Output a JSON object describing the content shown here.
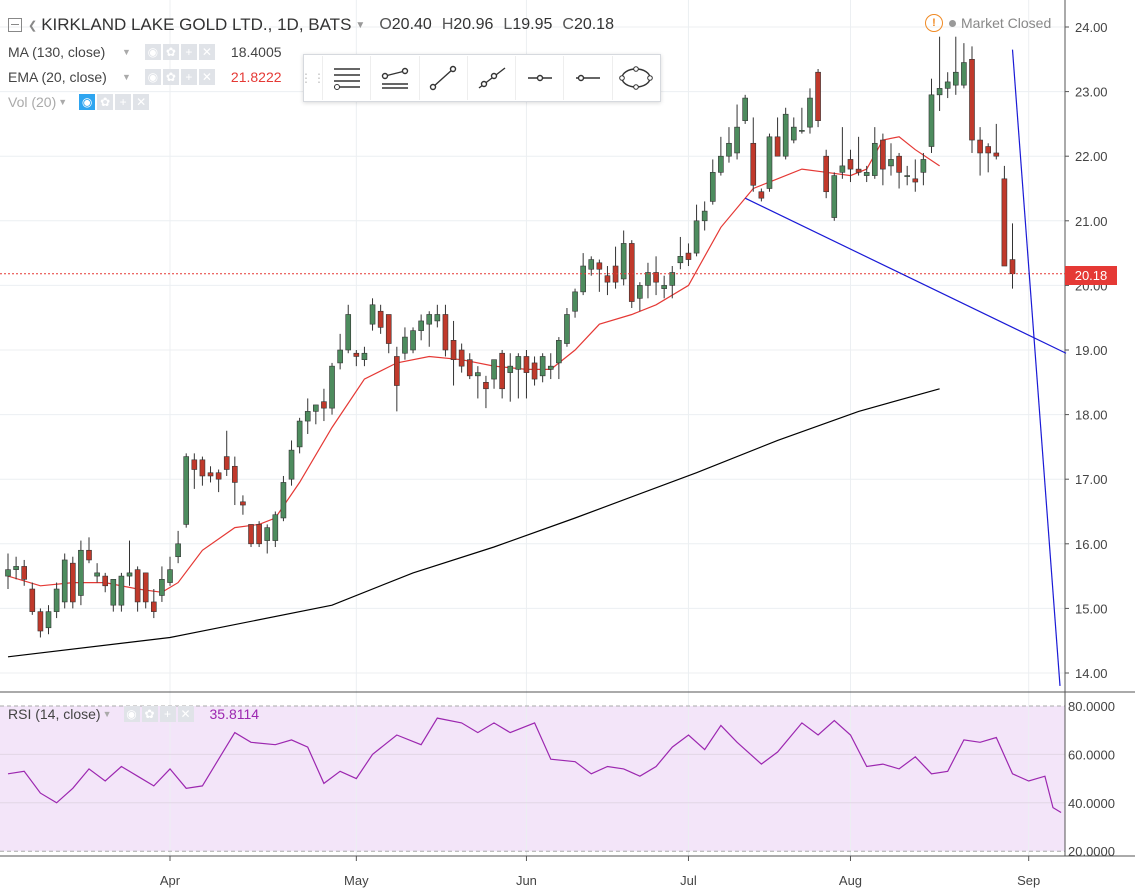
{
  "header": {
    "symbol": "KIRKLAND LAKE GOLD LTD., 1D, BATS",
    "open_label": "O",
    "open": "20.40",
    "high_label": "H",
    "high": "20.96",
    "low_label": "L",
    "low": "19.95",
    "close_label": "C",
    "close": "20.18"
  },
  "market_status": "Market Closed",
  "indicators": [
    {
      "label": "MA (130, close)",
      "value": "18.4005",
      "color": "#000000"
    },
    {
      "label": "EMA (20, close)",
      "value": "21.8222",
      "color": "#e53935"
    },
    {
      "label": "Vol (20)",
      "value": "",
      "color": "#aaaaaa"
    }
  ],
  "rsi": {
    "label": "RSI (14, close)",
    "value": "35.8114",
    "color": "#9c27b0"
  },
  "toolbar": {
    "tools": [
      "horizontal-lines-icon",
      "parallel-channel-icon",
      "trend-line-icon",
      "ray-icon",
      "horizontal-ray-icon",
      "horizontal-line-icon",
      "ellipse-icon"
    ]
  },
  "price_label": "20.18",
  "colors": {
    "up": "#4d8c5e",
    "down": "#c0392b",
    "ema": "#e53935",
    "ma": "#000000",
    "trendline": "#1a1ad6",
    "rsi": "#9c27b0",
    "rsi_bg": "#f3e5f9",
    "price_line": "#e53935"
  },
  "chart_data": {
    "type": "candlestick",
    "title": "KIRKLAND LAKE GOLD LTD., 1D, BATS",
    "yaxis": {
      "ticks": [
        "14.00",
        "15.00",
        "16.00",
        "17.00",
        "18.00",
        "19.00",
        "20.00",
        "21.00",
        "22.00",
        "23.00",
        "24.00"
      ],
      "range": [
        13.8,
        24.2
      ]
    },
    "xaxis": {
      "labels": [
        "Apr",
        "May",
        "Jun",
        "Jul",
        "Aug",
        "Sep"
      ],
      "label_days": [
        20,
        43,
        64,
        84,
        104,
        126
      ],
      "range": [
        0,
        129
      ]
    },
    "rsi_ticks": [
      "20.0000",
      "40.0000",
      "60.0000",
      "80.0000"
    ],
    "rsi_range": [
      18,
      82
    ],
    "candles": [
      {
        "o": 15.5,
        "h": 15.85,
        "l": 15.3,
        "c": 15.6
      },
      {
        "o": 15.6,
        "h": 15.8,
        "l": 15.45,
        "c": 15.65
      },
      {
        "o": 15.65,
        "h": 15.75,
        "l": 15.35,
        "c": 15.45
      },
      {
        "o": 15.3,
        "h": 15.4,
        "l": 14.9,
        "c": 14.95
      },
      {
        "o": 14.95,
        "h": 15.0,
        "l": 14.55,
        "c": 14.65
      },
      {
        "o": 14.7,
        "h": 15.05,
        "l": 14.6,
        "c": 14.95
      },
      {
        "o": 14.95,
        "h": 15.4,
        "l": 14.85,
        "c": 15.3
      },
      {
        "o": 15.1,
        "h": 15.85,
        "l": 15.0,
        "c": 15.75
      },
      {
        "o": 15.7,
        "h": 15.8,
        "l": 15.0,
        "c": 15.1
      },
      {
        "o": 15.2,
        "h": 16.05,
        "l": 15.05,
        "c": 15.9
      },
      {
        "o": 15.9,
        "h": 16.1,
        "l": 15.7,
        "c": 15.75
      },
      {
        "o": 15.5,
        "h": 15.7,
        "l": 15.4,
        "c": 15.55
      },
      {
        "o": 15.5,
        "h": 15.55,
        "l": 15.25,
        "c": 15.35
      },
      {
        "o": 15.05,
        "h": 15.45,
        "l": 14.95,
        "c": 15.45
      },
      {
        "o": 15.05,
        "h": 15.55,
        "l": 14.95,
        "c": 15.5
      },
      {
        "o": 15.5,
        "h": 16.05,
        "l": 15.35,
        "c": 15.55
      },
      {
        "o": 15.6,
        "h": 15.65,
        "l": 14.95,
        "c": 15.1
      },
      {
        "o": 15.55,
        "h": 15.55,
        "l": 15.0,
        "c": 15.1
      },
      {
        "o": 15.1,
        "h": 15.3,
        "l": 14.85,
        "c": 14.95
      },
      {
        "o": 15.2,
        "h": 15.65,
        "l": 15.1,
        "c": 15.45
      },
      {
        "o": 15.4,
        "h": 15.8,
        "l": 15.35,
        "c": 15.6
      },
      {
        "o": 15.8,
        "h": 16.2,
        "l": 15.7,
        "c": 16.0
      },
      {
        "o": 16.3,
        "h": 17.4,
        "l": 16.25,
        "c": 17.35
      },
      {
        "o": 17.3,
        "h": 17.4,
        "l": 16.85,
        "c": 17.15
      },
      {
        "o": 17.3,
        "h": 17.35,
        "l": 16.9,
        "c": 17.05
      },
      {
        "o": 17.1,
        "h": 17.2,
        "l": 16.95,
        "c": 17.05
      },
      {
        "o": 17.1,
        "h": 17.15,
        "l": 16.8,
        "c": 17.0
      },
      {
        "o": 17.35,
        "h": 17.75,
        "l": 17.05,
        "c": 17.15
      },
      {
        "o": 17.2,
        "h": 17.35,
        "l": 16.6,
        "c": 16.95
      },
      {
        "o": 16.65,
        "h": 16.75,
        "l": 16.45,
        "c": 16.6
      },
      {
        "o": 16.3,
        "h": 16.3,
        "l": 15.95,
        "c": 16.0
      },
      {
        "o": 16.3,
        "h": 16.35,
        "l": 15.95,
        "c": 16.0
      },
      {
        "o": 16.05,
        "h": 16.3,
        "l": 15.85,
        "c": 16.25
      },
      {
        "o": 16.05,
        "h": 16.5,
        "l": 15.95,
        "c": 16.45
      },
      {
        "o": 16.4,
        "h": 17.05,
        "l": 16.35,
        "c": 16.95
      },
      {
        "o": 17.0,
        "h": 17.6,
        "l": 16.9,
        "c": 17.45
      },
      {
        "o": 17.5,
        "h": 17.95,
        "l": 17.4,
        "c": 17.9
      },
      {
        "o": 17.9,
        "h": 18.25,
        "l": 17.7,
        "c": 18.05
      },
      {
        "o": 18.05,
        "h": 18.15,
        "l": 17.85,
        "c": 18.15
      },
      {
        "o": 18.2,
        "h": 18.4,
        "l": 17.9,
        "c": 18.1
      },
      {
        "o": 18.1,
        "h": 18.8,
        "l": 18.0,
        "c": 18.75
      },
      {
        "o": 18.8,
        "h": 19.25,
        "l": 18.7,
        "c": 19.0
      },
      {
        "o": 19.0,
        "h": 19.7,
        "l": 18.95,
        "c": 19.55
      },
      {
        "o": 18.95,
        "h": 19.0,
        "l": 18.75,
        "c": 18.9
      },
      {
        "o": 18.85,
        "h": 19.05,
        "l": 18.75,
        "c": 18.95
      },
      {
        "o": 19.4,
        "h": 19.8,
        "l": 19.3,
        "c": 19.7
      },
      {
        "o": 19.6,
        "h": 19.7,
        "l": 19.25,
        "c": 19.35
      },
      {
        "o": 19.55,
        "h": 19.55,
        "l": 18.95,
        "c": 19.1
      },
      {
        "o": 18.9,
        "h": 19.05,
        "l": 18.05,
        "c": 18.45
      },
      {
        "o": 18.95,
        "h": 19.35,
        "l": 18.85,
        "c": 19.2
      },
      {
        "o": 19.0,
        "h": 19.35,
        "l": 18.95,
        "c": 19.3
      },
      {
        "o": 19.3,
        "h": 19.55,
        "l": 19.15,
        "c": 19.45
      },
      {
        "o": 19.4,
        "h": 19.6,
        "l": 19.05,
        "c": 19.55
      },
      {
        "o": 19.45,
        "h": 19.7,
        "l": 19.35,
        "c": 19.55
      },
      {
        "o": 19.55,
        "h": 19.7,
        "l": 18.9,
        "c": 19.0
      },
      {
        "o": 19.15,
        "h": 19.45,
        "l": 18.45,
        "c": 18.85
      },
      {
        "o": 19.0,
        "h": 19.1,
        "l": 18.65,
        "c": 18.75
      },
      {
        "o": 18.85,
        "h": 18.95,
        "l": 18.55,
        "c": 18.6
      },
      {
        "o": 18.6,
        "h": 18.75,
        "l": 18.25,
        "c": 18.65
      },
      {
        "o": 18.5,
        "h": 18.6,
        "l": 18.1,
        "c": 18.4
      },
      {
        "o": 18.55,
        "h": 18.85,
        "l": 18.4,
        "c": 18.85
      },
      {
        "o": 18.95,
        "h": 19.0,
        "l": 18.25,
        "c": 18.4
      },
      {
        "o": 18.65,
        "h": 18.95,
        "l": 18.2,
        "c": 18.75
      },
      {
        "o": 18.7,
        "h": 18.95,
        "l": 18.25,
        "c": 18.9
      },
      {
        "o": 18.9,
        "h": 19.0,
        "l": 18.25,
        "c": 18.65
      },
      {
        "o": 18.8,
        "h": 18.9,
        "l": 18.45,
        "c": 18.55
      },
      {
        "o": 18.6,
        "h": 18.95,
        "l": 18.5,
        "c": 18.9
      },
      {
        "o": 18.7,
        "h": 18.95,
        "l": 18.55,
        "c": 18.75
      },
      {
        "o": 18.8,
        "h": 19.2,
        "l": 18.55,
        "c": 19.15
      },
      {
        "o": 19.1,
        "h": 19.65,
        "l": 19.05,
        "c": 19.55
      },
      {
        "o": 19.6,
        "h": 19.95,
        "l": 19.5,
        "c": 19.9
      },
      {
        "o": 19.9,
        "h": 20.5,
        "l": 19.85,
        "c": 20.3
      },
      {
        "o": 20.25,
        "h": 20.45,
        "l": 20.15,
        "c": 20.4
      },
      {
        "o": 20.35,
        "h": 20.4,
        "l": 19.9,
        "c": 20.25
      },
      {
        "o": 20.15,
        "h": 20.3,
        "l": 19.85,
        "c": 20.05
      },
      {
        "o": 20.3,
        "h": 20.6,
        "l": 19.95,
        "c": 20.05
      },
      {
        "o": 20.1,
        "h": 20.85,
        "l": 20.0,
        "c": 20.65
      },
      {
        "o": 20.65,
        "h": 20.7,
        "l": 19.65,
        "c": 19.75
      },
      {
        "o": 19.8,
        "h": 20.05,
        "l": 19.6,
        "c": 20.0
      },
      {
        "o": 20.0,
        "h": 20.35,
        "l": 19.8,
        "c": 20.2
      },
      {
        "o": 20.2,
        "h": 20.45,
        "l": 19.85,
        "c": 20.05
      },
      {
        "o": 19.95,
        "h": 20.15,
        "l": 19.8,
        "c": 20.0
      },
      {
        "o": 20.0,
        "h": 20.3,
        "l": 19.8,
        "c": 20.2
      },
      {
        "o": 20.35,
        "h": 20.75,
        "l": 20.25,
        "c": 20.45
      },
      {
        "o": 20.5,
        "h": 20.65,
        "l": 20.3,
        "c": 20.4
      },
      {
        "o": 20.5,
        "h": 21.25,
        "l": 20.45,
        "c": 21.0
      },
      {
        "o": 21.0,
        "h": 21.3,
        "l": 20.85,
        "c": 21.15
      },
      {
        "o": 21.3,
        "h": 21.95,
        "l": 21.25,
        "c": 21.75
      },
      {
        "o": 21.75,
        "h": 22.3,
        "l": 21.7,
        "c": 22.0
      },
      {
        "o": 22.0,
        "h": 22.45,
        "l": 21.9,
        "c": 22.2
      },
      {
        "o": 22.05,
        "h": 22.8,
        "l": 21.95,
        "c": 22.45
      },
      {
        "o": 22.55,
        "h": 22.95,
        "l": 22.5,
        "c": 22.9
      },
      {
        "o": 22.2,
        "h": 22.6,
        "l": 21.45,
        "c": 21.55
      },
      {
        "o": 21.45,
        "h": 21.5,
        "l": 21.3,
        "c": 21.35
      },
      {
        "o": 21.5,
        "h": 22.35,
        "l": 21.45,
        "c": 22.3
      },
      {
        "o": 22.3,
        "h": 22.6,
        "l": 22.0,
        "c": 22.0
      },
      {
        "o": 22.0,
        "h": 22.75,
        "l": 21.95,
        "c": 22.65
      },
      {
        "o": 22.25,
        "h": 22.6,
        "l": 22.2,
        "c": 22.45
      },
      {
        "o": 22.4,
        "h": 22.75,
        "l": 22.35,
        "c": 22.4
      },
      {
        "o": 22.45,
        "h": 23.05,
        "l": 22.35,
        "c": 22.9
      },
      {
        "o": 23.3,
        "h": 23.35,
        "l": 22.45,
        "c": 22.55
      },
      {
        "o": 22.0,
        "h": 22.1,
        "l": 21.35,
        "c": 21.45
      },
      {
        "o": 21.05,
        "h": 21.75,
        "l": 21.0,
        "c": 21.7
      },
      {
        "o": 21.75,
        "h": 22.45,
        "l": 21.65,
        "c": 21.85
      },
      {
        "o": 21.95,
        "h": 22.1,
        "l": 21.6,
        "c": 21.8
      },
      {
        "o": 21.8,
        "h": 22.3,
        "l": 21.7,
        "c": 21.75
      },
      {
        "o": 21.7,
        "h": 21.85,
        "l": 21.6,
        "c": 21.75
      },
      {
        "o": 21.7,
        "h": 22.45,
        "l": 21.65,
        "c": 22.2
      },
      {
        "o": 22.25,
        "h": 22.35,
        "l": 21.55,
        "c": 21.8
      },
      {
        "o": 21.85,
        "h": 22.2,
        "l": 21.7,
        "c": 21.95
      },
      {
        "o": 22.0,
        "h": 22.05,
        "l": 21.5,
        "c": 21.75
      },
      {
        "o": 21.7,
        "h": 21.85,
        "l": 21.55,
        "c": 21.7
      },
      {
        "o": 21.65,
        "h": 21.95,
        "l": 21.45,
        "c": 21.6
      },
      {
        "o": 21.75,
        "h": 22.05,
        "l": 21.55,
        "c": 21.95
      },
      {
        "o": 22.15,
        "h": 23.2,
        "l": 22.05,
        "c": 22.95
      },
      {
        "o": 22.95,
        "h": 23.85,
        "l": 22.7,
        "c": 23.05
      },
      {
        "o": 23.05,
        "h": 23.3,
        "l": 22.9,
        "c": 23.15
      },
      {
        "o": 23.1,
        "h": 23.85,
        "l": 22.95,
        "c": 23.3
      },
      {
        "o": 23.1,
        "h": 23.75,
        "l": 23.05,
        "c": 23.45
      },
      {
        "o": 23.5,
        "h": 23.7,
        "l": 22.05,
        "c": 22.25
      },
      {
        "o": 22.25,
        "h": 22.45,
        "l": 21.7,
        "c": 22.05
      },
      {
        "o": 22.15,
        "h": 22.2,
        "l": 21.75,
        "c": 22.05
      },
      {
        "o": 22.05,
        "h": 22.5,
        "l": 21.95,
        "c": 22.0
      },
      {
        "o": 21.65,
        "h": 21.85,
        "l": 20.35,
        "c": 20.3
      },
      {
        "o": 20.4,
        "h": 20.96,
        "l": 19.95,
        "c": 20.18
      }
    ],
    "ema20": [
      [
        0,
        15.5
      ],
      [
        4,
        15.35
      ],
      [
        8,
        15.4
      ],
      [
        12,
        15.4
      ],
      [
        16,
        15.3
      ],
      [
        19,
        15.25
      ],
      [
        21,
        15.4
      ],
      [
        24,
        15.9
      ],
      [
        28,
        16.25
      ],
      [
        31,
        16.3
      ],
      [
        33,
        16.4
      ],
      [
        36,
        16.95
      ],
      [
        40,
        17.8
      ],
      [
        44,
        18.55
      ],
      [
        48,
        18.8
      ],
      [
        52,
        18.9
      ],
      [
        56,
        18.85
      ],
      [
        60,
        18.75
      ],
      [
        64,
        18.7
      ],
      [
        67,
        18.7
      ],
      [
        70,
        19.0
      ],
      [
        73,
        19.4
      ],
      [
        77,
        19.55
      ],
      [
        80,
        19.7
      ],
      [
        84,
        20.0
      ],
      [
        88,
        20.9
      ],
      [
        92,
        21.5
      ],
      [
        95,
        21.65
      ],
      [
        98,
        21.8
      ],
      [
        101,
        21.75
      ],
      [
        104,
        21.7
      ],
      [
        106,
        21.8
      ],
      [
        108,
        22.25
      ],
      [
        110,
        22.3
      ],
      [
        112,
        22.1
      ],
      [
        115,
        21.85
      ]
    ],
    "ma130": [
      [
        0,
        14.25
      ],
      [
        20,
        14.55
      ],
      [
        40,
        15.05
      ],
      [
        50,
        15.55
      ],
      [
        60,
        15.95
      ],
      [
        70,
        16.4
      ],
      [
        85,
        17.1
      ],
      [
        95,
        17.6
      ],
      [
        105,
        18.05
      ],
      [
        115,
        18.4
      ]
    ],
    "rsi_values": [
      [
        0,
        52
      ],
      [
        2,
        53
      ],
      [
        4,
        44
      ],
      [
        6,
        40
      ],
      [
        8,
        46
      ],
      [
        10,
        54
      ],
      [
        12,
        49
      ],
      [
        14,
        55
      ],
      [
        16,
        51
      ],
      [
        18,
        47
      ],
      [
        20,
        54
      ],
      [
        22,
        46
      ],
      [
        24,
        47
      ],
      [
        26,
        58
      ],
      [
        28,
        69
      ],
      [
        30,
        65
      ],
      [
        33,
        64
      ],
      [
        35,
        66
      ],
      [
        37,
        63
      ],
      [
        39,
        48
      ],
      [
        41,
        53
      ],
      [
        43,
        50
      ],
      [
        45,
        60
      ],
      [
        48,
        68
      ],
      [
        51,
        64
      ],
      [
        53,
        75
      ],
      [
        56,
        73
      ],
      [
        58,
        69
      ],
      [
        60,
        73
      ],
      [
        62,
        69
      ],
      [
        65,
        73
      ],
      [
        67,
        58
      ],
      [
        70,
        57
      ],
      [
        72,
        52
      ],
      [
        74,
        55
      ],
      [
        76,
        54
      ],
      [
        78,
        51
      ],
      [
        80,
        55
      ],
      [
        82,
        63
      ],
      [
        84,
        68
      ],
      [
        86,
        62
      ],
      [
        88,
        72
      ],
      [
        90,
        65
      ],
      [
        93,
        56
      ],
      [
        95,
        61
      ],
      [
        98,
        73
      ],
      [
        100,
        68
      ],
      [
        102,
        74
      ],
      [
        104,
        68
      ],
      [
        106,
        55
      ],
      [
        108,
        56
      ],
      [
        110,
        54
      ],
      [
        112,
        59
      ],
      [
        114,
        52
      ],
      [
        116,
        53
      ],
      [
        118,
        66
      ],
      [
        120,
        65
      ],
      [
        122,
        67
      ],
      [
        124,
        52
      ],
      [
        126,
        49
      ],
      [
        128,
        51
      ],
      [
        129,
        38
      ],
      [
        130,
        36
      ]
    ],
    "hline_price": 20.18
  }
}
